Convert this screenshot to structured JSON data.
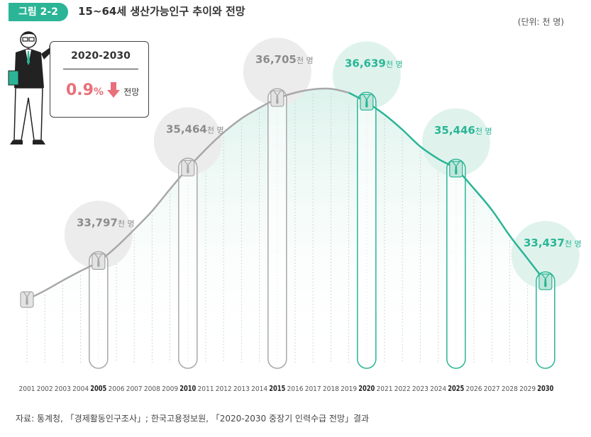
{
  "figure": {
    "label": "그림 2-2",
    "title": "15~64세 생산가능인구 추이와 전망",
    "unit": "(단위: 천 명)",
    "source": "자료: 통계청, 「경제활동인구조사」; 한국고용정보원, 「2020-2030 중장기 인력수급 전망」결과"
  },
  "callout": {
    "period": "2020-2030",
    "rate": "0.9",
    "rate_unit": "%",
    "suffix": "전망"
  },
  "chart_data": {
    "type": "line",
    "x": [
      "2001",
      "2002",
      "2003",
      "2004",
      "2005",
      "2006",
      "2007",
      "2008",
      "2009",
      "2010",
      "2011",
      "2012",
      "2013",
      "2014",
      "2015",
      "2016",
      "2017",
      "2018",
      "2019",
      "2020",
      "2021",
      "2022",
      "2023",
      "2024",
      "2025",
      "2026",
      "2027",
      "2028",
      "2029",
      "2030"
    ],
    "bold_years": [
      "2005",
      "2010",
      "2015",
      "2020",
      "2025",
      "2030"
    ],
    "series": [
      {
        "values": [
          33120,
          33280,
          33460,
          33630,
          33797,
          34060,
          34370,
          34700,
          35090,
          35464,
          35800,
          36100,
          36350,
          36540,
          36705,
          36810,
          36870,
          36880,
          36810,
          36639,
          36420,
          36150,
          35850,
          35630,
          35446,
          35100,
          34720,
          34260,
          33850,
          33437
        ],
        "color_actual": "#a8a8a8",
        "color_projection": "#2bb596"
      }
    ],
    "highlighted_points": [
      {
        "year": "2005",
        "value_label": "33,797",
        "unit": "천 명",
        "kind": "actual"
      },
      {
        "year": "2010",
        "value_label": "35,464",
        "unit": "천 명",
        "kind": "actual"
      },
      {
        "year": "2015",
        "value_label": "36,705",
        "unit": "천 명",
        "kind": "actual"
      },
      {
        "year": "2020",
        "value_label": "36,639",
        "unit": "천 명",
        "kind": "projection"
      },
      {
        "year": "2025",
        "value_label": "35,446",
        "unit": "천 명",
        "kind": "projection"
      },
      {
        "year": "2030",
        "value_label": "33,437",
        "unit": "천 명",
        "kind": "projection"
      }
    ],
    "split_year": "2019",
    "ylim": [
      32400,
      37200
    ],
    "grid": true,
    "colors": {
      "actual": "#a8a8a8",
      "projection": "#2bb596",
      "accent": "#e8707a",
      "badge": "#2bb596"
    }
  }
}
